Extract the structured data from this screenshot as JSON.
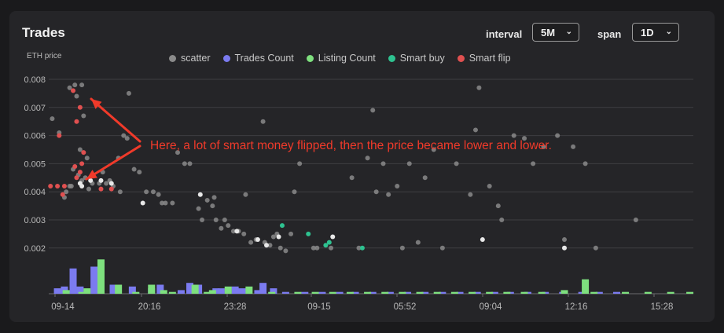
{
  "panel": {
    "title": "Trades"
  },
  "controls": {
    "interval_label": "interval",
    "interval_value": "5M",
    "span_label": "span",
    "span_value": "1D"
  },
  "annotation": "Here, a lot of smart money flipped, then the price became lower and lower.",
  "colors": {
    "scatter": "#8a8a8a",
    "scatter_bright": "#e8e8e8",
    "trades_count": "#7b7bf0",
    "listing_count": "#7ee07e",
    "smart_buy": "#2ec290",
    "smart_flip": "#e05050",
    "annotation": "#f03a2a"
  },
  "chart_data": {
    "type": "scatter",
    "ylabel": "ETH price",
    "ylim": [
      0.0015,
      0.0081
    ],
    "yticks": [
      "0.008",
      "0.007",
      "0.006",
      "0.005",
      "0.004",
      "0.003",
      "0.002"
    ],
    "grid": true,
    "legend_position": "top",
    "x_range": [
      "09-14",
      "16:20"
    ],
    "xticks": [
      "09-14",
      "20:16",
      "23:28",
      "09-15",
      "05:52",
      "09:04",
      "12:16",
      "15:28"
    ],
    "legend": [
      "scatter",
      "Trades Count",
      "Listing Count",
      "Smart buy",
      "Smart flip"
    ],
    "series": [
      {
        "name": "scatter",
        "points": [
          [
            0.2,
            0.0066
          ],
          [
            0.6,
            0.0061
          ],
          [
            1.2,
            0.0077
          ],
          [
            1.5,
            0.0078
          ],
          [
            1.9,
            0.0078
          ],
          [
            1.6,
            0.0074
          ],
          [
            2.0,
            0.0067
          ],
          [
            1.8,
            0.0055
          ],
          [
            2.2,
            0.0052
          ],
          [
            1.4,
            0.0048
          ],
          [
            1.7,
            0.0046
          ],
          [
            1.9,
            0.0044
          ],
          [
            1.3,
            0.0042
          ],
          [
            2.1,
            0.0045
          ],
          [
            2.5,
            0.0043
          ],
          [
            2.9,
            0.0043
          ],
          [
            3.3,
            0.0043
          ],
          [
            3.7,
            0.0042
          ],
          [
            4.1,
            0.004
          ],
          [
            1.0,
            0.004
          ],
          [
            1.2,
            0.0042
          ],
          [
            0.9,
            0.0038
          ],
          [
            2.3,
            0.0041
          ],
          [
            3.1,
            0.0047
          ],
          [
            3.5,
            0.0044
          ],
          [
            4.0,
            0.0052
          ],
          [
            4.3,
            0.006
          ],
          [
            4.5,
            0.0059
          ],
          [
            4.6,
            0.0075
          ],
          [
            4.9,
            0.0048
          ],
          [
            5.2,
            0.0047
          ],
          [
            5.6,
            0.004
          ],
          [
            6.0,
            0.004
          ],
          [
            6.3,
            0.0039
          ],
          [
            6.5,
            0.0036
          ],
          [
            6.7,
            0.0036
          ],
          [
            7.1,
            0.0036
          ],
          [
            7.4,
            0.0054
          ],
          [
            7.8,
            0.005
          ],
          [
            8.1,
            0.005
          ],
          [
            8.6,
            0.0034
          ],
          [
            8.8,
            0.003
          ],
          [
            9.1,
            0.0037
          ],
          [
            9.4,
            0.0035
          ],
          [
            9.5,
            0.0038
          ],
          [
            9.6,
            0.003
          ],
          [
            9.9,
            0.0027
          ],
          [
            10.1,
            0.003
          ],
          [
            10.3,
            0.0028
          ],
          [
            10.6,
            0.0026
          ],
          [
            10.9,
            0.0026
          ],
          [
            11.2,
            0.0025
          ],
          [
            11.3,
            0.0039
          ],
          [
            11.6,
            0.0022
          ],
          [
            11.9,
            0.0023
          ],
          [
            12.3,
            0.0065
          ],
          [
            12.4,
            0.0022
          ],
          [
            12.7,
            0.0021
          ],
          [
            12.9,
            0.0024
          ],
          [
            13.1,
            0.0025
          ],
          [
            13.3,
            0.002
          ],
          [
            13.6,
            0.0019
          ],
          [
            13.9,
            0.0025
          ],
          [
            14.1,
            0.004
          ],
          [
            14.4,
            0.005
          ],
          [
            15.2,
            0.002
          ],
          [
            15.4,
            0.002
          ],
          [
            16.2,
            0.002
          ],
          [
            17.4,
            0.0045
          ],
          [
            17.8,
            0.002
          ],
          [
            18.3,
            0.0052
          ],
          [
            18.6,
            0.0069
          ],
          [
            18.8,
            0.004
          ],
          [
            19.2,
            0.005
          ],
          [
            19.5,
            0.0039
          ],
          [
            20.0,
            0.0042
          ],
          [
            20.3,
            0.002
          ],
          [
            20.7,
            0.005
          ],
          [
            21.2,
            0.0022
          ],
          [
            21.6,
            0.0045
          ],
          [
            22.1,
            0.0055
          ],
          [
            22.6,
            0.002
          ],
          [
            23.4,
            0.005
          ],
          [
            24.2,
            0.0039
          ],
          [
            24.5,
            0.0062
          ],
          [
            24.7,
            0.0077
          ],
          [
            25.3,
            0.0042
          ],
          [
            25.8,
            0.0035
          ],
          [
            26.0,
            0.003
          ],
          [
            26.7,
            0.006
          ],
          [
            27.3,
            0.0059
          ],
          [
            27.8,
            0.005
          ],
          [
            28.4,
            0.0056
          ],
          [
            29.2,
            0.006
          ],
          [
            29.6,
            0.0023
          ],
          [
            30.1,
            0.0056
          ],
          [
            30.8,
            0.005
          ],
          [
            31.4,
            0.002
          ],
          [
            33.7,
            0.003
          ]
        ]
      },
      {
        "name": "scatter-bright",
        "points": [
          [
            1.8,
            0.0043
          ],
          [
            1.9,
            0.0042
          ],
          [
            2.4,
            0.0044
          ],
          [
            3.0,
            0.0044
          ],
          [
            3.6,
            0.0043
          ],
          [
            5.4,
            0.0036
          ],
          [
            8.7,
            0.0039
          ],
          [
            10.8,
            0.0026
          ],
          [
            12.0,
            0.0023
          ],
          [
            12.5,
            0.0021
          ],
          [
            13.2,
            0.0024
          ],
          [
            16.3,
            0.0024
          ],
          [
            24.9,
            0.0023
          ],
          [
            29.6,
            0.002
          ]
        ]
      },
      {
        "name": "Smart buy",
        "points": [
          [
            13.4,
            0.0028
          ],
          [
            14.9,
            0.0025
          ],
          [
            15.9,
            0.0021
          ],
          [
            16.1,
            0.0022
          ],
          [
            18.0,
            0.002
          ]
        ]
      },
      {
        "name": "Smart flip",
        "points": [
          [
            0.1,
            0.0042
          ],
          [
            0.6,
            0.006
          ],
          [
            0.5,
            0.0042
          ],
          [
            0.9,
            0.0042
          ],
          [
            0.8,
            0.0039
          ],
          [
            1.4,
            0.0076
          ],
          [
            1.6,
            0.0065
          ],
          [
            1.8,
            0.007
          ],
          [
            2.0,
            0.0054
          ],
          [
            1.9,
            0.005
          ],
          [
            1.5,
            0.0049
          ],
          [
            1.8,
            0.0047
          ],
          [
            1.6,
            0.0045
          ],
          [
            3.0,
            0.0041
          ],
          [
            3.6,
            0.0041
          ]
        ]
      },
      {
        "name": "Trades Count",
        "bars": [
          [
            0.5,
            3
          ],
          [
            0.9,
            4
          ],
          [
            1.4,
            14
          ],
          [
            1.8,
            4
          ],
          [
            2.6,
            15
          ],
          [
            3.7,
            5
          ],
          [
            4.8,
            4
          ],
          [
            5.9,
            3
          ],
          [
            6.4,
            5
          ],
          [
            7.6,
            2
          ],
          [
            8.1,
            6
          ],
          [
            8.6,
            5
          ],
          [
            9.6,
            3
          ],
          [
            9.9,
            3
          ],
          [
            10.7,
            4
          ],
          [
            11.1,
            3
          ],
          [
            12.0,
            2
          ],
          [
            12.3,
            6
          ],
          [
            12.9,
            3
          ],
          [
            13.6,
            1
          ],
          [
            14.7,
            1
          ],
          [
            15.7,
            1
          ],
          [
            16.7,
            1
          ],
          [
            17.6,
            1
          ],
          [
            18.6,
            1
          ],
          [
            19.6,
            1
          ],
          [
            20.6,
            1
          ],
          [
            21.6,
            1
          ],
          [
            22.6,
            1
          ],
          [
            23.6,
            1
          ],
          [
            24.6,
            1
          ],
          [
            25.6,
            1
          ],
          [
            26.5,
            1
          ],
          [
            27.5,
            1
          ],
          [
            28.5,
            1
          ],
          [
            29.5,
            1
          ],
          [
            30.6,
            1
          ],
          [
            31.6,
            1
          ],
          [
            32.6,
            1
          ]
        ]
      },
      {
        "name": "Listing Count",
        "bars": [
          [
            1.0,
            2
          ],
          [
            1.9,
            1
          ],
          [
            2.2,
            3
          ],
          [
            3.0,
            19
          ],
          [
            4.0,
            5
          ],
          [
            5.0,
            1
          ],
          [
            5.9,
            5
          ],
          [
            6.6,
            2
          ],
          [
            7.1,
            1
          ],
          [
            8.4,
            5
          ],
          [
            9.1,
            1
          ],
          [
            9.4,
            2
          ],
          [
            10.3,
            4
          ],
          [
            11.5,
            4
          ],
          [
            12.8,
            1
          ],
          [
            14.3,
            1
          ],
          [
            15.3,
            1
          ],
          [
            16.3,
            1
          ],
          [
            17.3,
            1
          ],
          [
            18.3,
            1
          ],
          [
            19.3,
            1
          ],
          [
            20.3,
            1
          ],
          [
            21.3,
            1
          ],
          [
            22.3,
            1
          ],
          [
            23.3,
            1
          ],
          [
            24.3,
            1
          ],
          [
            25.3,
            1
          ],
          [
            26.3,
            1
          ],
          [
            27.3,
            1
          ],
          [
            28.3,
            1
          ],
          [
            29.6,
            2
          ],
          [
            30.8,
            8
          ],
          [
            31.3,
            1
          ],
          [
            33.1,
            1
          ],
          [
            34.4,
            1
          ],
          [
            35.7,
            1
          ],
          [
            36.8,
            1
          ]
        ]
      }
    ]
  }
}
